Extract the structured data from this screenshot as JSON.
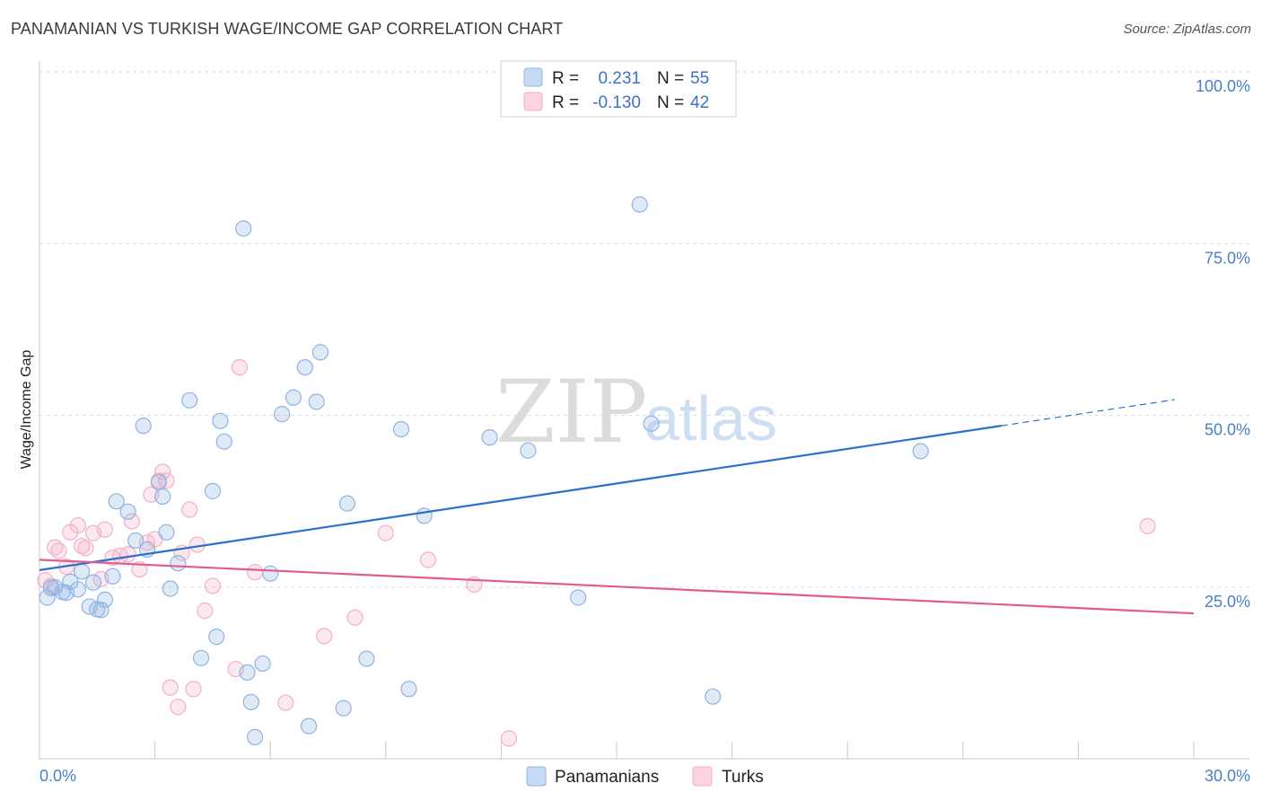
{
  "title": "PANAMANIAN VS TURKISH WAGE/INCOME GAP CORRELATION CHART",
  "source": "Source: ZipAtlas.com",
  "watermark": {
    "zip": "ZIP",
    "atlas": "atlas"
  },
  "chart_data": {
    "type": "scatter",
    "ylabel": "Wage/Income Gap",
    "xlim": [
      0,
      30
    ],
    "ylim": [
      0,
      105
    ],
    "x_tick_labels": [
      {
        "value": 0,
        "label": "0.0%"
      },
      {
        "value": 30,
        "label": "30.0%"
      }
    ],
    "y_tick_labels": [
      {
        "value": 25,
        "label": "25.0%"
      },
      {
        "value": 50,
        "label": "50.0%"
      },
      {
        "value": 75,
        "label": "75.0%"
      },
      {
        "value": 100,
        "label": "100.0%"
      }
    ],
    "legend": {
      "rows": [
        {
          "r_label": "R =",
          "r_value": "0.231",
          "n_label": "N =",
          "n_value": "55"
        },
        {
          "r_label": "R =",
          "r_value": "-0.130",
          "n_label": "N =",
          "n_value": "42"
        }
      ]
    },
    "series": [
      {
        "name": "Panamanians",
        "color": "#8fb4e3",
        "line_color": "#2b6fcf",
        "trend": {
          "x0": 0,
          "y0": 27.5,
          "x1": 25,
          "y1": 48.5,
          "dash_to_x": 29.5,
          "dash_to_y": 52.3
        },
        "points": [
          [
            0.2,
            23.5
          ],
          [
            0.4,
            25.0
          ],
          [
            0.6,
            24.3
          ],
          [
            0.8,
            25.8
          ],
          [
            1.0,
            24.7
          ],
          [
            1.1,
            27.3
          ],
          [
            1.3,
            22.2
          ],
          [
            1.5,
            21.8
          ],
          [
            1.6,
            21.7
          ],
          [
            1.7,
            23.2
          ],
          [
            1.9,
            26.6
          ],
          [
            2.0,
            37.5
          ],
          [
            2.3,
            36.0
          ],
          [
            2.5,
            31.8
          ],
          [
            2.7,
            48.5
          ],
          [
            2.8,
            30.5
          ],
          [
            3.1,
            40.3
          ],
          [
            3.2,
            38.2
          ],
          [
            3.3,
            33.0
          ],
          [
            3.4,
            24.8
          ],
          [
            3.6,
            28.5
          ],
          [
            3.9,
            52.2
          ],
          [
            4.2,
            14.7
          ],
          [
            4.5,
            39.0
          ],
          [
            4.6,
            17.8
          ],
          [
            4.7,
            49.2
          ],
          [
            4.8,
            46.2
          ],
          [
            5.3,
            77.2
          ],
          [
            5.4,
            12.6
          ],
          [
            5.5,
            8.3
          ],
          [
            5.6,
            3.2
          ],
          [
            5.8,
            13.9
          ],
          [
            6.0,
            27.0
          ],
          [
            6.3,
            50.2
          ],
          [
            6.6,
            52.6
          ],
          [
            6.9,
            57.0
          ],
          [
            7.0,
            4.8
          ],
          [
            7.2,
            52.0
          ],
          [
            7.3,
            59.2
          ],
          [
            7.9,
            7.4
          ],
          [
            8.0,
            37.2
          ],
          [
            8.5,
            14.6
          ],
          [
            9.4,
            48.0
          ],
          [
            9.6,
            10.2
          ],
          [
            10.0,
            35.4
          ],
          [
            11.7,
            46.8
          ],
          [
            12.7,
            44.9
          ],
          [
            14.0,
            23.5
          ],
          [
            15.6,
            80.7
          ],
          [
            15.9,
            48.8
          ],
          [
            17.5,
            9.1
          ],
          [
            22.9,
            44.8
          ],
          [
            0.3,
            24.9
          ],
          [
            0.7,
            24.2
          ],
          [
            1.4,
            25.7
          ]
        ]
      },
      {
        "name": "Turks",
        "color": "#f4afc6",
        "line_color": "#e05d8f",
        "trend": {
          "x0": 0,
          "y0": 29.0,
          "x1": 30,
          "y1": 21.2
        },
        "points": [
          [
            0.15,
            26.0
          ],
          [
            0.3,
            25.2
          ],
          [
            0.4,
            30.8
          ],
          [
            0.5,
            30.3
          ],
          [
            0.7,
            28.0
          ],
          [
            0.8,
            33.0
          ],
          [
            1.0,
            34.0
          ],
          [
            1.1,
            31.0
          ],
          [
            1.2,
            30.7
          ],
          [
            1.4,
            32.9
          ],
          [
            1.6,
            26.2
          ],
          [
            1.7,
            33.4
          ],
          [
            1.9,
            29.3
          ],
          [
            2.1,
            29.6
          ],
          [
            2.3,
            29.8
          ],
          [
            2.4,
            34.6
          ],
          [
            2.6,
            27.6
          ],
          [
            2.8,
            31.5
          ],
          [
            2.9,
            38.5
          ],
          [
            3.0,
            32.0
          ],
          [
            3.1,
            40.5
          ],
          [
            3.2,
            41.8
          ],
          [
            3.3,
            40.5
          ],
          [
            3.4,
            10.4
          ],
          [
            3.6,
            7.6
          ],
          [
            3.7,
            30.0
          ],
          [
            3.9,
            36.3
          ],
          [
            4.0,
            10.2
          ],
          [
            4.1,
            31.2
          ],
          [
            4.3,
            21.6
          ],
          [
            4.5,
            25.2
          ],
          [
            5.1,
            13.1
          ],
          [
            5.2,
            57.0
          ],
          [
            5.6,
            27.2
          ],
          [
            6.4,
            8.2
          ],
          [
            7.4,
            17.9
          ],
          [
            8.2,
            20.6
          ],
          [
            9.0,
            32.9
          ],
          [
            10.1,
            29.0
          ],
          [
            11.3,
            25.4
          ],
          [
            12.2,
            3.0
          ],
          [
            28.8,
            33.9
          ]
        ]
      }
    ]
  }
}
